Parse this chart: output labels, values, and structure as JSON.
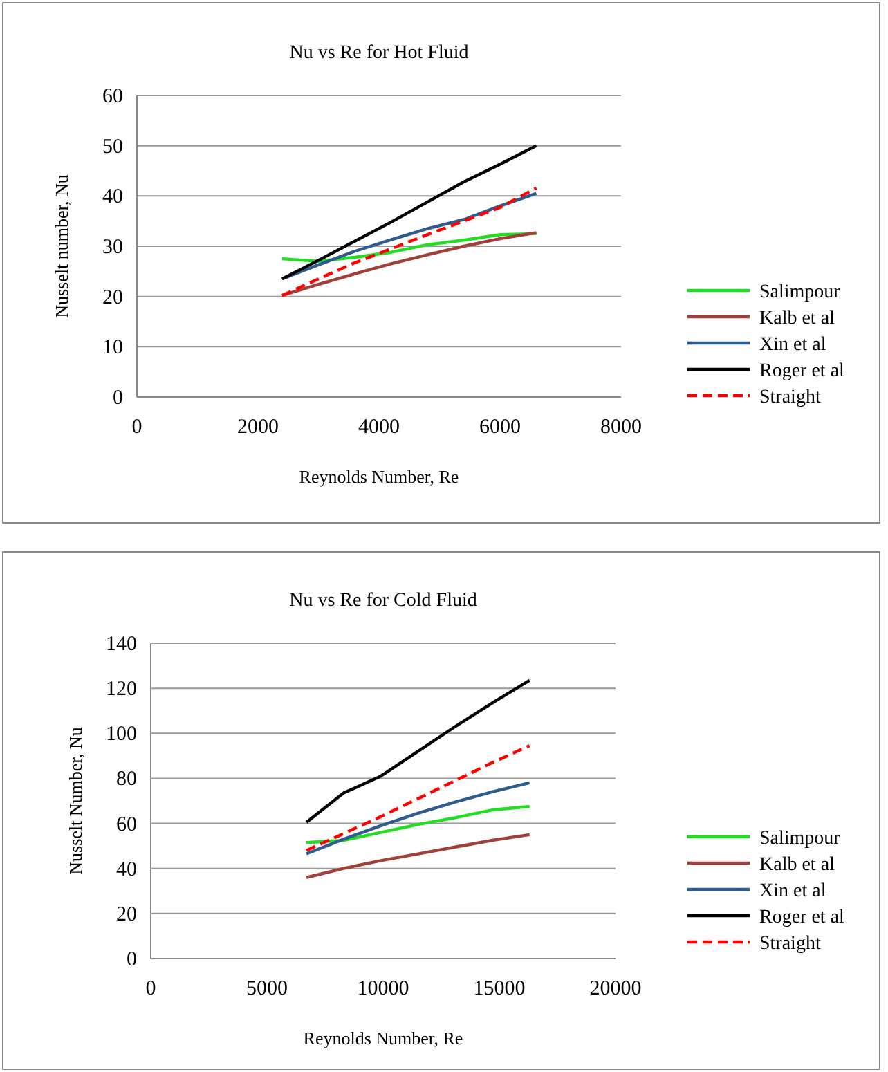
{
  "chart_data": [
    {
      "type": "line",
      "title": "Nu vs Re for Hot Fluid",
      "xlabel": "Reynolds Number, Re",
      "ylabel": "Nusselt number, Nu",
      "x": [
        2400,
        3000,
        3600,
        4200,
        4800,
        5400,
        6000,
        6600
      ],
      "xlim": [
        0,
        8000
      ],
      "xticks": [
        0,
        2000,
        4000,
        6000,
        8000
      ],
      "ylim": [
        0,
        60
      ],
      "yticks": [
        0,
        10,
        20,
        30,
        40,
        50,
        60
      ],
      "grid": "y",
      "legend": "right",
      "series": [
        {
          "name": "Salimpour",
          "color": "#22dd22",
          "values": [
            27.5,
            27,
            27.8,
            28.8,
            30.3,
            31.2,
            32.3,
            32.5
          ]
        },
        {
          "name": "Kalb et al",
          "color": "#a0403c",
          "values": [
            20.2,
            22.4,
            24.5,
            26.5,
            28.3,
            30,
            31.5,
            32.7
          ]
        },
        {
          "name": "Xin et al",
          "color": "#2f5c8f",
          "values": [
            23.5,
            26.3,
            29,
            31.3,
            33.5,
            35.3,
            38,
            40.5
          ]
        },
        {
          "name": "Roger et al",
          "color": "#000000",
          "values": [
            23.5,
            27.2,
            31,
            34.8,
            38.8,
            42.8,
            46.3,
            50
          ]
        },
        {
          "name": "Straight",
          "color": "#ff0000",
          "line_style": "dashed",
          "values": [
            20.2,
            23.5,
            26.7,
            29.5,
            32.3,
            35,
            37.7,
            41.6
          ]
        }
      ]
    },
    {
      "type": "line",
      "title": "Nu vs Re for Cold Fluid",
      "xlabel": "Reynolds Number, Re",
      "ylabel": "Nusselt Number, Nu",
      "x": [
        6700,
        8300,
        9900,
        11500,
        13100,
        14700,
        16300
      ],
      "xlim": [
        0,
        20000
      ],
      "xticks": [
        0,
        5000,
        10000,
        15000,
        20000
      ],
      "ylim": [
        0,
        140
      ],
      "yticks": [
        0,
        20,
        40,
        60,
        80,
        100,
        120,
        140
      ],
      "grid": "y",
      "legend": "right",
      "series": [
        {
          "name": "Salimpour",
          "color": "#22dd22",
          "values": [
            51.5,
            52.5,
            56,
            59.5,
            62.5,
            66,
            67.5
          ]
        },
        {
          "name": "Kalb et al",
          "color": "#a0403c",
          "values": [
            36,
            40,
            43.5,
            46.5,
            49.5,
            52.5,
            55
          ]
        },
        {
          "name": "Xin et al",
          "color": "#2f5c8f",
          "values": [
            46.5,
            53,
            59,
            64.5,
            69.5,
            74,
            78
          ]
        },
        {
          "name": "Roger et al",
          "color": "#000000",
          "values": [
            60.5,
            73.5,
            81,
            92,
            103,
            113.5,
            123.5
          ]
        },
        {
          "name": "Straight",
          "color": "#ff0000",
          "line_style": "dashed",
          "values": [
            48,
            55.5,
            63,
            71,
            79,
            87,
            94.5
          ]
        }
      ]
    }
  ]
}
